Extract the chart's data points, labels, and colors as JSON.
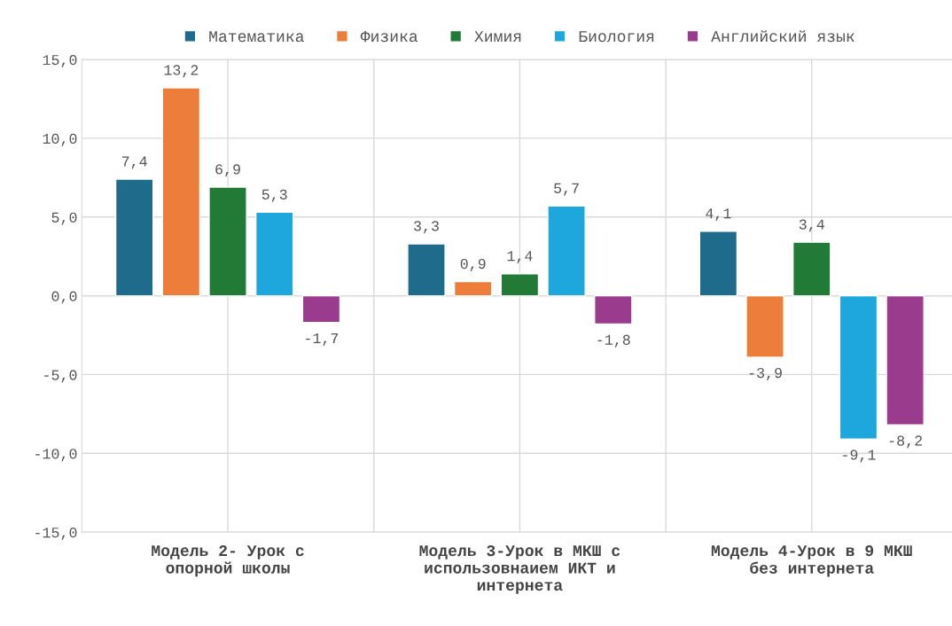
{
  "chart_data": {
    "type": "bar",
    "categories": [
      "Модель 2- Урок с опорной школы",
      "Модель 3-Урок в МКШ с использовнаием ИКТ и интернета",
      "Модель 4-Урок в 9 МКШ без интернета"
    ],
    "series": [
      {
        "name": "Математика",
        "color": "#1f6b8c",
        "values": [
          7.4,
          3.3,
          4.1
        ],
        "value_labels": [
          "7,4",
          "3,3",
          "4,1"
        ]
      },
      {
        "name": "Физика",
        "color": "#ed7d3b",
        "values": [
          13.2,
          0.9,
          -3.9
        ],
        "value_labels": [
          "13,2",
          "0,9",
          "-3,9"
        ]
      },
      {
        "name": "Химия",
        "color": "#217a35",
        "values": [
          6.9,
          1.4,
          3.4
        ],
        "value_labels": [
          "6,9",
          "1,4",
          "3,4"
        ]
      },
      {
        "name": "Биология",
        "color": "#1ea7dc",
        "values": [
          5.3,
          5.7,
          -9.1
        ],
        "value_labels": [
          "5,3",
          "5,7",
          "-9,1"
        ]
      },
      {
        "name": "Английский язык",
        "color": "#9a3b8e",
        "values": [
          -1.7,
          -1.8,
          -8.2
        ],
        "value_labels": [
          "-1,7",
          "-1,8",
          "-8,2"
        ]
      }
    ],
    "ylim": [
      -15,
      15
    ],
    "yticks": [
      {
        "value": -15,
        "label": "-15,0"
      },
      {
        "value": -10,
        "label": "-10,0"
      },
      {
        "value": -5,
        "label": "-5,0"
      },
      {
        "value": 0,
        "label": "0,0"
      },
      {
        "value": 5,
        "label": "5,0"
      },
      {
        "value": 10,
        "label": "10,0"
      },
      {
        "value": 15,
        "label": "15,0"
      }
    ],
    "grid": true,
    "legend": "top"
  }
}
